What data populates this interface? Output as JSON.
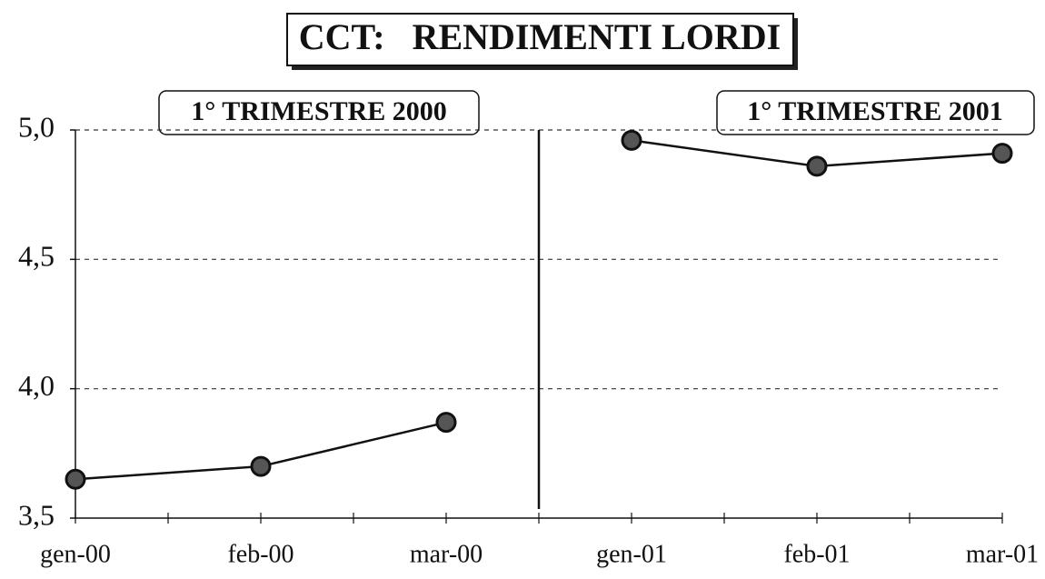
{
  "chart_data": {
    "type": "line",
    "title": "CCT:   RENDIMENTI LORDI",
    "categories": [
      "gen-00",
      "feb-00",
      "mar-00",
      "gen-01",
      "feb-01",
      "mar-01"
    ],
    "series": [
      {
        "name": "1° TRIMESTRE 2000",
        "color": "#111111",
        "values": [
          3.65,
          3.7,
          3.87,
          null,
          null,
          null
        ]
      },
      {
        "name": "1° TRIMESTRE 2001",
        "color": "#111111",
        "values": [
          null,
          null,
          null,
          4.96,
          4.86,
          4.91
        ]
      }
    ],
    "ylim": [
      3.5,
      5.0
    ],
    "yticks": [
      {
        "value": 3.5,
        "label": "3,5"
      },
      {
        "value": 4.0,
        "label": "4,0"
      },
      {
        "value": 4.5,
        "label": "4,5"
      },
      {
        "value": 5.0,
        "label": "5,0"
      }
    ],
    "grid": true
  }
}
